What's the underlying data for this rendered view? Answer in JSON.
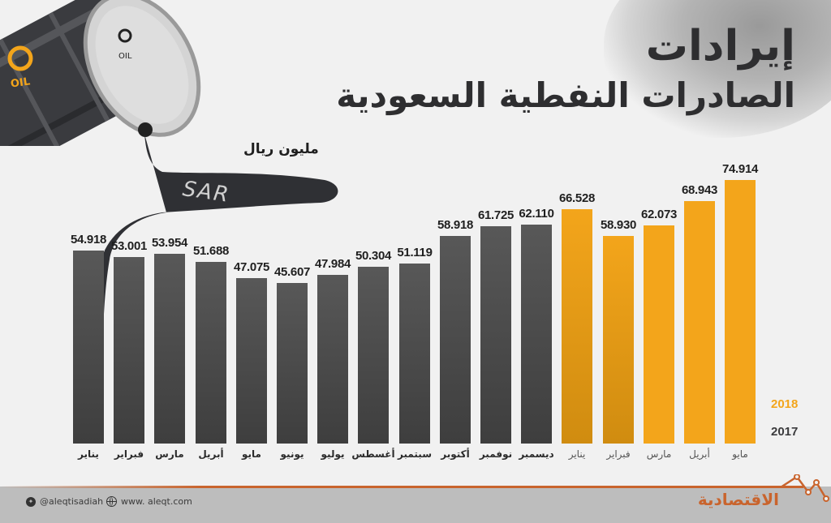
{
  "header": {
    "title_line1": "إيرادات",
    "title_line2": "الصادرات النفطية السعودية",
    "unit": "مليون ريال"
  },
  "illustration": {
    "barrel_label": "OIL",
    "spill_label": "SAR"
  },
  "legend": {
    "year_2018": "2018",
    "year_2017": "2017",
    "color_2018": "#f3a51b",
    "color_2017": "#3b3b3d"
  },
  "footer": {
    "twitter": "@aleqtisadiah",
    "website": "www. aleqt.com",
    "brand": "الاقتصادية",
    "accent_color": "#c9642d"
  },
  "chart_data": {
    "type": "bar",
    "title": "إيرادات الصادرات النفطية السعودية",
    "ylabel": "مليون ريال",
    "xlabel": "",
    "grid": false,
    "legend_position": "right-bottom",
    "ylim": [
      0,
      80
    ],
    "categories": [
      "يناير",
      "فبراير",
      "مارس",
      "أبريل",
      "مايو",
      "يونيو",
      "يوليو",
      "أغسطس",
      "سبتمبر",
      "أكتوبر",
      "نوفمبر",
      "ديسمبر",
      "يناير",
      "فبراير",
      "مارس",
      "أبريل",
      "مايو"
    ],
    "years": [
      "2017",
      "2017",
      "2017",
      "2017",
      "2017",
      "2017",
      "2017",
      "2017",
      "2017",
      "2017",
      "2017",
      "2017",
      "2018",
      "2018",
      "2018",
      "2018",
      "2018"
    ],
    "values": [
      54.918,
      53.001,
      53.954,
      51.688,
      47.075,
      45.607,
      47.984,
      50.304,
      51.119,
      58.918,
      61.725,
      62.11,
      66.528,
      58.93,
      62.073,
      68.943,
      74.914
    ],
    "value_labels": [
      "54.918",
      "53.001",
      "53.954",
      "51.688",
      "47.075",
      "45.607",
      "47.984",
      "50.304",
      "51.119",
      "58.918",
      "61.725",
      "62.110",
      "66.528",
      "58.930",
      "62.073",
      "68.943",
      "74.914"
    ],
    "series": [
      {
        "name": "2017",
        "categories": [
          "يناير",
          "فبراير",
          "مارس",
          "أبريل",
          "مايو",
          "يونيو",
          "يوليو",
          "أغسطس",
          "سبتمبر",
          "أكتوبر",
          "نوفمبر",
          "ديسمبر"
        ],
        "values": [
          54.918,
          53.001,
          53.954,
          51.688,
          47.075,
          45.607,
          47.984,
          50.304,
          51.119,
          58.918,
          61.725,
          62.11
        ]
      },
      {
        "name": "2018",
        "categories": [
          "يناير",
          "فبراير",
          "مارس",
          "أبريل",
          "مايو"
        ],
        "values": [
          66.528,
          58.93,
          62.073,
          68.943,
          74.914
        ]
      }
    ]
  }
}
